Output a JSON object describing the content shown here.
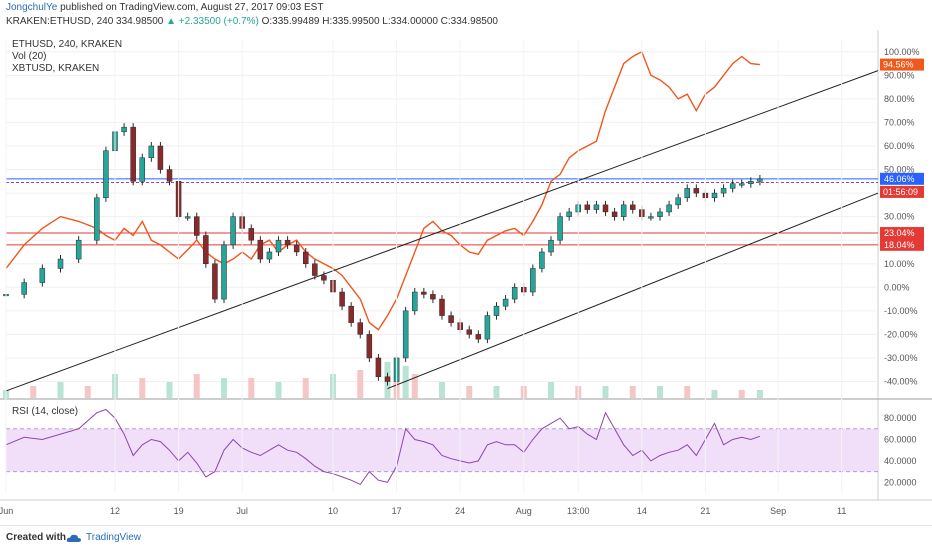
{
  "header": {
    "author": "JongchulYe",
    "published": "published on TradingView.com, August 27, 2017 09:03 EST",
    "symbol": "KRAKEN:ETHUSD, 240",
    "last": "334.98500",
    "change": "▲ +2.33500 (+0.7%)",
    "ohlc": "O:335.99489 H:335.99500 L:334.00000 C:334.98500"
  },
  "footer": {
    "created": "Created with",
    "brand": "TradingView"
  },
  "colors": {
    "up": "#26a69a",
    "down": "#8b2a2a",
    "eth": "#2a2a2a",
    "btc": "#f0561d",
    "rsi": "#8e44ad",
    "rsi_band": "#f1dff9",
    "hline_blue": "#3f51b5",
    "hline_red": "#e53935",
    "tag_blue": "#2962ff",
    "tag_red": "#e53935",
    "tag_orange": "#ef5a1c"
  },
  "chart_data": [
    {
      "type": "line",
      "legend": [
        "ETHUSD, 240, KRAKEN",
        "Vol (20)",
        "XBTUSD, KRAKEN"
      ],
      "yaxis_unit": "percent",
      "ylim": [
        -47,
        105
      ],
      "yticks": [
        "100.00%",
        "90.00%",
        "80.00%",
        "70.00%",
        "60.00%",
        "50.00%",
        "40.00%",
        "30.00%",
        "20.00%",
        "10.00%",
        "0.00%",
        "-10.00%",
        "-20.00%",
        "-30.00%",
        "-40.00%"
      ],
      "ytick_values": [
        100,
        90,
        80,
        70,
        60,
        50,
        40,
        30,
        20,
        10,
        0,
        -10,
        -20,
        -30,
        -40
      ],
      "x_ticks": [
        "Jun",
        "12",
        "19",
        "Jul",
        "10",
        "17",
        "24",
        "Aug",
        "13:00",
        "14",
        "21",
        "Sep",
        "11"
      ],
      "x_tick_days": [
        0,
        12,
        19,
        26,
        36,
        43,
        50,
        57,
        63,
        70,
        77,
        85,
        92
      ],
      "xlim_days": [
        0,
        96
      ],
      "series": [
        {
          "name": "ETHUSD",
          "style": "candles",
          "days": [
            0,
            2,
            4,
            6,
            8,
            10,
            11,
            12,
            13,
            14,
            15,
            16,
            17,
            18,
            19,
            20,
            21,
            22,
            23,
            24,
            25,
            26,
            27,
            28,
            29,
            30,
            31,
            32,
            33,
            34,
            35,
            36,
            37,
            38,
            39,
            40,
            41,
            42,
            43,
            44,
            45,
            46,
            47,
            48,
            49,
            50,
            51,
            52,
            53,
            54,
            55,
            56,
            57,
            58,
            59,
            60,
            61,
            62,
            63,
            64,
            65,
            66,
            67,
            68,
            69,
            70,
            71,
            72,
            73,
            74,
            75,
            76,
            77,
            78,
            79,
            80,
            81,
            82,
            83
          ],
          "values": [
            -3,
            2,
            8,
            12,
            20,
            38,
            58,
            66,
            68,
            45,
            55,
            60,
            50,
            45,
            30,
            30,
            22,
            10,
            -5,
            18,
            30,
            25,
            20,
            12,
            15,
            20,
            18,
            15,
            10,
            5,
            3,
            -2,
            -8,
            -15,
            -20,
            -30,
            -38,
            -40,
            -30,
            -10,
            -2,
            -3,
            -5,
            -12,
            -15,
            -18,
            -20,
            -22,
            -12,
            -8,
            -5,
            0,
            -2,
            8,
            15,
            20,
            30,
            32,
            35,
            33,
            35,
            32,
            30,
            35,
            33,
            30,
            30,
            32,
            35,
            38,
            42,
            40,
            38,
            40,
            42,
            44,
            44,
            45,
            46
          ]
        },
        {
          "name": "XBTUSD",
          "style": "line",
          "days": [
            0,
            2,
            4,
            6,
            8,
            10,
            11,
            12,
            13,
            14,
            15,
            16,
            17,
            18,
            19,
            20,
            21,
            22,
            23,
            24,
            25,
            26,
            27,
            28,
            29,
            30,
            31,
            32,
            33,
            34,
            35,
            36,
            37,
            38,
            39,
            40,
            41,
            42,
            43,
            44,
            45,
            46,
            47,
            48,
            49,
            50,
            51,
            52,
            53,
            54,
            55,
            56,
            57,
            58,
            59,
            60,
            61,
            62,
            63,
            64,
            65,
            66,
            67,
            68,
            69,
            70,
            71,
            72,
            73,
            74,
            75,
            76,
            77,
            78,
            79,
            80,
            81,
            82,
            83
          ],
          "values": [
            8,
            18,
            25,
            30,
            28,
            25,
            22,
            20,
            25,
            22,
            28,
            20,
            18,
            15,
            12,
            16,
            20,
            15,
            12,
            10,
            12,
            15,
            12,
            18,
            20,
            15,
            18,
            20,
            15,
            12,
            10,
            8,
            5,
            0,
            -5,
            -15,
            -18,
            -12,
            -5,
            5,
            15,
            25,
            28,
            24,
            22,
            18,
            15,
            14,
            20,
            22,
            24,
            25,
            22,
            28,
            35,
            45,
            48,
            55,
            58,
            60,
            62,
            75,
            85,
            95,
            98,
            100,
            90,
            88,
            85,
            80,
            82,
            75,
            82,
            85,
            90,
            95,
            98,
            95,
            94.56
          ]
        },
        {
          "name": "Vol (20)",
          "style": "volume",
          "days": [
            0,
            3,
            6,
            9,
            12,
            15,
            18,
            21,
            24,
            27,
            30,
            33,
            36,
            39,
            42,
            43,
            44,
            45,
            48,
            51,
            54,
            57,
            60,
            63,
            66,
            69,
            72,
            75,
            78,
            81,
            83
          ],
          "values": [
            2,
            3,
            4,
            3,
            6,
            5,
            4,
            6,
            5,
            5,
            4,
            5,
            6,
            7,
            9,
            10,
            8,
            6,
            4,
            3,
            3,
            3,
            4,
            3,
            3,
            3,
            3,
            3,
            2,
            2,
            2
          ]
        }
      ],
      "horizontal_lines": [
        {
          "value": 46.06,
          "label": "46.06%",
          "color": "#2962ff"
        },
        {
          "value": 44.5,
          "label": "",
          "color": "#8e44ad"
        },
        {
          "value": 23.04,
          "label": "23.04%",
          "color": "#e53935"
        },
        {
          "value": 18.04,
          "label": "18.04%",
          "color": "#e53935"
        }
      ],
      "price_tags": [
        {
          "value": 94.56,
          "label": "94.56%",
          "color": "#ef5a1c"
        },
        {
          "value": 40.5,
          "label": "01:56:09",
          "color": "#e53935"
        }
      ],
      "trendlines": [
        {
          "from_day": 0,
          "from_value": -44,
          "to_day": 96,
          "to_value": 92
        },
        {
          "from_day": 42,
          "from_value": -43,
          "to_day": 96,
          "to_value": 40
        }
      ]
    },
    {
      "type": "line",
      "legend": [
        "RSI (14, close)"
      ],
      "ylim": [
        10,
        95
      ],
      "yticks": [
        "80.0000",
        "60.0000",
        "40.0000",
        "20.0000"
      ],
      "ytick_values": [
        80,
        60,
        40,
        20
      ],
      "band": [
        30,
        70
      ],
      "series": [
        {
          "name": "RSI",
          "days": [
            0,
            2,
            4,
            6,
            8,
            10,
            11,
            12,
            13,
            14,
            15,
            16,
            17,
            18,
            19,
            20,
            21,
            22,
            23,
            24,
            25,
            26,
            27,
            28,
            29,
            30,
            31,
            32,
            33,
            34,
            35,
            36,
            37,
            38,
            39,
            40,
            41,
            42,
            43,
            44,
            45,
            46,
            47,
            48,
            49,
            50,
            51,
            52,
            53,
            54,
            55,
            56,
            57,
            58,
            59,
            60,
            61,
            62,
            63,
            64,
            65,
            66,
            67,
            68,
            69,
            70,
            71,
            72,
            73,
            74,
            75,
            76,
            77,
            78,
            79,
            80,
            81,
            82,
            83
          ],
          "values": [
            55,
            62,
            60,
            65,
            70,
            85,
            88,
            80,
            65,
            45,
            55,
            60,
            58,
            50,
            40,
            48,
            38,
            25,
            30,
            50,
            60,
            52,
            48,
            45,
            50,
            55,
            50,
            48,
            42,
            35,
            30,
            28,
            25,
            22,
            18,
            30,
            22,
            20,
            35,
            70,
            60,
            58,
            55,
            45,
            42,
            40,
            38,
            40,
            55,
            58,
            55,
            55,
            48,
            60,
            70,
            75,
            80,
            70,
            72,
            65,
            60,
            85,
            70,
            55,
            45,
            50,
            40,
            45,
            48,
            50,
            55,
            45,
            60,
            75,
            55,
            60,
            62,
            60,
            63
          ]
        }
      ]
    }
  ]
}
